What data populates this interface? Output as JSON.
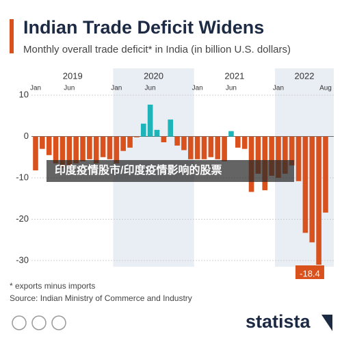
{
  "chart_data": {
    "type": "bar",
    "title": "Indian Trade Deficit Widens",
    "subtitle": "Monthly overall trade deficit* in India (in billion U.S. dollars)",
    "year_bands": [
      "2019",
      "2020",
      "2021",
      "2022"
    ],
    "categories": [
      "Jan",
      null,
      null,
      null,
      null,
      "Jun",
      null,
      null,
      null,
      null,
      null,
      null,
      "Jan",
      null,
      null,
      null,
      null,
      "Jun",
      null,
      null,
      null,
      null,
      null,
      null,
      "Jan",
      null,
      null,
      null,
      null,
      "Jun",
      null,
      null,
      null,
      null,
      null,
      null,
      "Jan",
      null,
      null,
      null,
      null,
      null,
      null,
      "Aug"
    ],
    "values": [
      -8.2,
      -3.0,
      -4.5,
      -6.5,
      -7.5,
      -7.0,
      -6.5,
      -6.0,
      -5.5,
      -6.5,
      -5.0,
      -5.5,
      -6.5,
      -3.5,
      -2.7,
      -0.2,
      3.1,
      7.7,
      1.6,
      -1.4,
      4.1,
      -2.2,
      -3.3,
      -5.5,
      -5.5,
      -5.5,
      -5.0,
      -5.5,
      -6.0,
      1.3,
      -2.7,
      -3.0,
      -13.4,
      -9.0,
      -13.0,
      -9.5,
      -10.0,
      -9.0,
      -7.0,
      -10.8,
      -23.3,
      -25.6,
      -31.0,
      -18.4
    ],
    "colors": {
      "positive": "#1fb5b8",
      "negative": "#d9521e"
    },
    "ylim": [
      -31.5,
      11.5
    ],
    "yticks": [
      10,
      0,
      -10,
      -20,
      -30
    ],
    "grid": true,
    "highlight_index": 43,
    "footnote": "* exports minus imports",
    "source": "Source: Indian Ministry of Commerce and Industry",
    "overlay_text": "印度疫情股市/印度疫情影响的股票",
    "brand": "statista"
  }
}
